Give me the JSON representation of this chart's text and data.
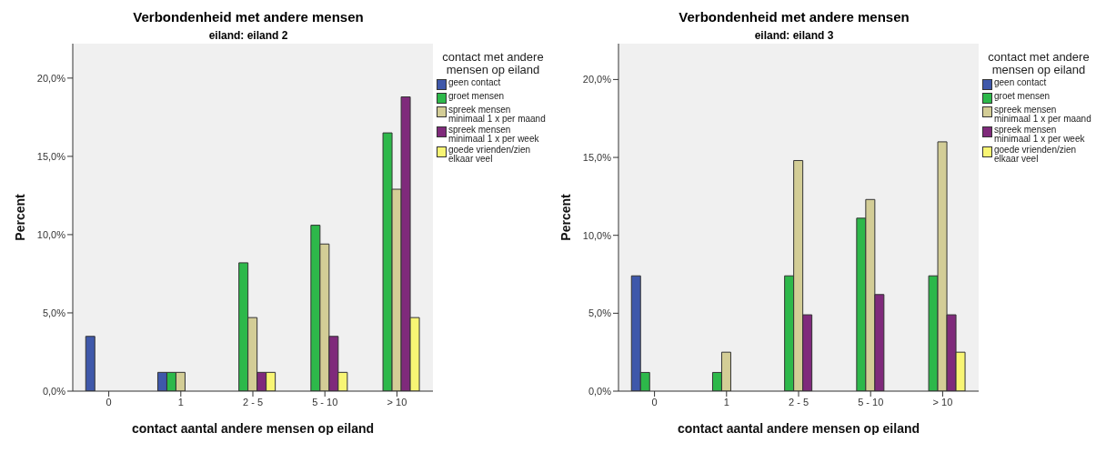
{
  "chart_data": [
    {
      "type": "bar",
      "title": "Verbondenheid met andere mensen",
      "subtitle": "eiland: eiland 2",
      "xlabel": "contact aantal andere mensen op eiland",
      "ylabel": "Percent",
      "legend_title": "contact met andere mensen op eiland",
      "categories": [
        "0",
        "1",
        "2 - 5",
        "5 - 10",
        "> 10"
      ],
      "series": [
        {
          "name": "geen contact",
          "color": "#3f58aa",
          "values": [
            3.5,
            1.2,
            0,
            0,
            0
          ]
        },
        {
          "name": "groet mensen",
          "color": "#2db84a",
          "values": [
            0,
            1.2,
            8.2,
            10.6,
            16.5
          ]
        },
        {
          "name": "spreek mensen minimaal 1 x per maand",
          "color": "#d3cd96",
          "values": [
            0,
            1.2,
            4.7,
            9.4,
            12.9
          ]
        },
        {
          "name": "spreek mensen minimaal 1 x per week",
          "color": "#7f2a7b",
          "values": [
            0,
            0,
            1.2,
            3.5,
            18.8
          ]
        },
        {
          "name": "goede vrienden/zien elkaar veel",
          "color": "#f8f574",
          "values": [
            0,
            0,
            1.2,
            1.2,
            4.7
          ]
        }
      ],
      "ylim": [
        0,
        22.2
      ],
      "yticks": [
        {
          "value": 0,
          "label": "0,0%"
        },
        {
          "value": 5,
          "label": "5,0%"
        },
        {
          "value": 10,
          "label": "10,0%"
        },
        {
          "value": 15,
          "label": "15,0%"
        },
        {
          "value": 20,
          "label": "20,0%"
        }
      ],
      "grid": false,
      "legend": "right"
    },
    {
      "type": "bar",
      "title": "Verbondenheid met andere mensen",
      "subtitle": "eiland: eiland 3",
      "xlabel": "contact aantal andere mensen op eiland",
      "ylabel": "Percent",
      "legend_title": "contact met andere mensen op eiland",
      "categories": [
        "0",
        "1",
        "2 - 5",
        "5 - 10",
        "> 10"
      ],
      "series": [
        {
          "name": "geen contact",
          "color": "#3f58aa",
          "values": [
            7.4,
            0,
            0,
            0,
            0
          ]
        },
        {
          "name": "groet mensen",
          "color": "#2db84a",
          "values": [
            1.2,
            1.2,
            7.4,
            11.1,
            7.4
          ]
        },
        {
          "name": "spreek mensen minimaal 1 x per maand",
          "color": "#d3cd96",
          "values": [
            0,
            2.5,
            14.8,
            12.3,
            16.0
          ]
        },
        {
          "name": "spreek mensen minimaal 1 x per week",
          "color": "#7f2a7b",
          "values": [
            0,
            0,
            4.9,
            6.2,
            4.9
          ]
        },
        {
          "name": "goede vrienden/zien elkaar veel",
          "color": "#f8f574",
          "values": [
            0,
            0,
            0,
            0,
            2.5
          ]
        }
      ],
      "ylim": [
        0,
        22.3
      ],
      "yticks": [
        {
          "value": 0,
          "label": "0,0%"
        },
        {
          "value": 5,
          "label": "5,0%"
        },
        {
          "value": 10,
          "label": "10,0%"
        },
        {
          "value": 15,
          "label": "15,0%"
        },
        {
          "value": 20,
          "label": "20,0%"
        }
      ],
      "grid": false,
      "legend": "right"
    }
  ]
}
